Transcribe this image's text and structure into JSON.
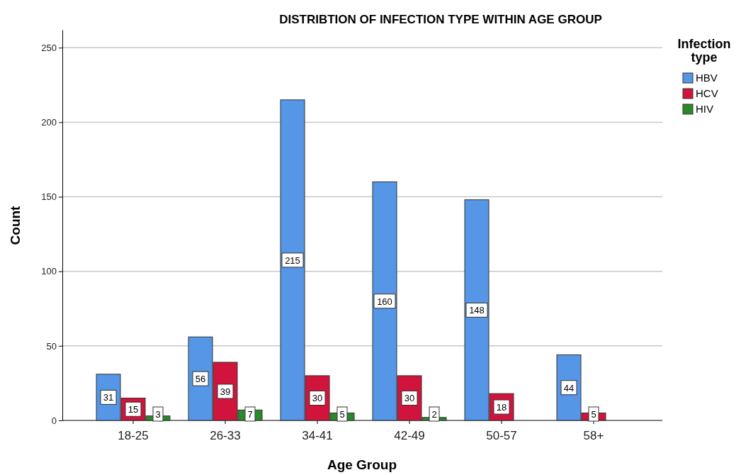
{
  "chart_data": {
    "type": "bar",
    "title": "DISTRIBTION OF INFECTION TYPE WITHIN AGE GROUP",
    "xlabel": "Age Group",
    "ylabel": "Count",
    "legend_title": "Infection type",
    "categories": [
      "18-25",
      "26-33",
      "34-41",
      "42-49",
      "50-57",
      "58+"
    ],
    "series": [
      {
        "name": "HBV",
        "color": "#5596e6",
        "values": [
          31,
          56,
          215,
          160,
          148,
          44
        ]
      },
      {
        "name": "HCV",
        "color": "#d1143c",
        "values": [
          15,
          39,
          30,
          30,
          18,
          5
        ]
      },
      {
        "name": "HIV",
        "color": "#2a8a2a",
        "values": [
          3,
          7,
          5,
          2,
          null,
          null
        ]
      }
    ],
    "ylim": [
      0,
      262
    ],
    "yticks": [
      0,
      50,
      100,
      150,
      200,
      250
    ],
    "grid": "y",
    "legend": "top right",
    "data_labels": true
  }
}
